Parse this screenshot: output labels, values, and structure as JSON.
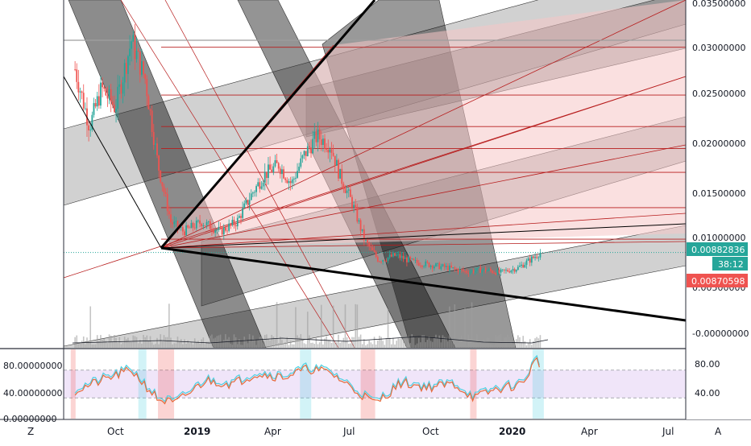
{
  "colors": {
    "bull": "#26a69a",
    "bear": "#ef5350",
    "fan_line": "#b71c1c",
    "fan_fill": "#f5c6c6",
    "band_fill": "#000000",
    "rsi_line": "#e56a3c",
    "rsi_signal": "#4dd0e1",
    "rsi_band": "#e6d4f5",
    "price_badge_up": "#26a69a",
    "price_badge_down": "#ef5350",
    "axis_text": "#131722"
  },
  "price_axis": {
    "ticks": [
      "0.03500000",
      "0.03000000",
      "0.02500000",
      "0.02000000",
      "0.01500000",
      "0.01000000",
      "0.00500000",
      "-0.00000000"
    ]
  },
  "badges": {
    "last_price": "0.00882836",
    "countdown": "38:12",
    "prev_price": "0.00870598"
  },
  "rsi_axis": {
    "right_ticks": [
      "80.00",
      "40.00"
    ],
    "left_ticks": [
      "80.00000000",
      "40.00000000",
      "0.00000000"
    ]
  },
  "time_axis": {
    "labels": [
      "Oct",
      "2019",
      "Apr",
      "Jul",
      "Oct",
      "2020",
      "Apr",
      "Jul"
    ],
    "bold": [
      false,
      true,
      false,
      false,
      false,
      true,
      false,
      false
    ]
  },
  "corner_buttons": {
    "left": "Z",
    "right": "A"
  },
  "chart_data": [
    {
      "type": "candlestick",
      "title": "",
      "x_range": [
        "2018-08",
        "2020-08"
      ],
      "ylim": [
        -0.002,
        0.036
      ],
      "y_scale": "linear",
      "last_value": 0.00882836,
      "series_approx": [
        {
          "date": "2018-08-15",
          "close": 0.028
        },
        {
          "date": "2018-09-01",
          "close": 0.022
        },
        {
          "date": "2018-09-15",
          "close": 0.026
        },
        {
          "date": "2018-10-01",
          "close": 0.024
        },
        {
          "date": "2018-10-20",
          "close": 0.031
        },
        {
          "date": "2018-11-05",
          "close": 0.027
        },
        {
          "date": "2018-11-20",
          "close": 0.018
        },
        {
          "date": "2018-12-05",
          "close": 0.012
        },
        {
          "date": "2018-12-20",
          "close": 0.011
        },
        {
          "date": "2019-01-10",
          "close": 0.012
        },
        {
          "date": "2019-02-01",
          "close": 0.011
        },
        {
          "date": "2019-02-20",
          "close": 0.012
        },
        {
          "date": "2019-03-10",
          "close": 0.015
        },
        {
          "date": "2019-03-25",
          "close": 0.017
        },
        {
          "date": "2019-04-10",
          "close": 0.018
        },
        {
          "date": "2019-04-25",
          "close": 0.016
        },
        {
          "date": "2019-05-10",
          "close": 0.019
        },
        {
          "date": "2019-05-25",
          "close": 0.021
        },
        {
          "date": "2019-06-10",
          "close": 0.02
        },
        {
          "date": "2019-06-20",
          "close": 0.017
        },
        {
          "date": "2019-07-05",
          "close": 0.014
        },
        {
          "date": "2019-07-20",
          "close": 0.01
        },
        {
          "date": "2019-08-05",
          "close": 0.008
        },
        {
          "date": "2019-08-25",
          "close": 0.0085
        },
        {
          "date": "2019-09-15",
          "close": 0.0078
        },
        {
          "date": "2019-10-05",
          "close": 0.0075
        },
        {
          "date": "2019-10-25",
          "close": 0.0072
        },
        {
          "date": "2019-11-15",
          "close": 0.0068
        },
        {
          "date": "2019-12-05",
          "close": 0.007
        },
        {
          "date": "2019-12-25",
          "close": 0.0067
        },
        {
          "date": "2020-01-15",
          "close": 0.0072
        },
        {
          "date": "2020-02-01",
          "close": 0.0082
        },
        {
          "date": "2020-02-10",
          "close": 0.0088
        }
      ],
      "horizontal_levels": [
        0.0303,
        0.0253,
        0.022,
        0.0197,
        0.0172,
        0.0135,
        0.0102,
        0.0088
      ]
    },
    {
      "type": "line",
      "title": "",
      "ylim": [
        0,
        100
      ],
      "band": [
        30,
        70
      ],
      "series_approx": [
        {
          "date": "2018-08-15",
          "value": 40
        },
        {
          "date": "2018-09-15",
          "value": 55
        },
        {
          "date": "2018-10-20",
          "value": 70
        },
        {
          "date": "2018-11-20",
          "value": 28
        },
        {
          "date": "2018-12-10",
          "value": 22
        },
        {
          "date": "2019-01-15",
          "value": 55
        },
        {
          "date": "2019-02-15",
          "value": 50
        },
        {
          "date": "2019-03-15",
          "value": 65
        },
        {
          "date": "2019-04-15",
          "value": 60
        },
        {
          "date": "2019-05-15",
          "value": 72
        },
        {
          "date": "2019-06-10",
          "value": 66
        },
        {
          "date": "2019-07-10",
          "value": 40
        },
        {
          "date": "2019-08-01",
          "value": 22
        },
        {
          "date": "2019-09-01",
          "value": 52
        },
        {
          "date": "2019-10-01",
          "value": 45
        },
        {
          "date": "2019-11-01",
          "value": 50
        },
        {
          "date": "2019-11-25",
          "value": 30
        },
        {
          "date": "2019-12-20",
          "value": 42
        },
        {
          "date": "2020-01-20",
          "value": 50
        },
        {
          "date": "2020-02-05",
          "value": 85
        },
        {
          "date": "2020-02-10",
          "value": 78
        }
      ]
    }
  ]
}
